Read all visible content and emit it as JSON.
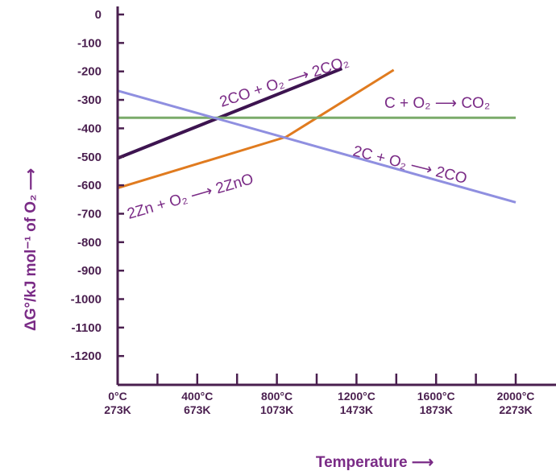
{
  "chart_data": {
    "type": "line",
    "ylabel": "ΔG°/kJ mol⁻¹ of O₂ ⟶",
    "xlabel": "Temperature ⟶",
    "ylim": [
      -1300,
      0
    ],
    "xlim": [
      273,
      2273
    ],
    "y_ticks": [
      "0",
      "-100",
      "-200",
      "-300",
      "-400",
      "-500",
      "-600",
      "-700",
      "-800",
      "-900",
      "-1000",
      "-1100",
      "-1200"
    ],
    "y_tick_values": [
      0,
      -100,
      -200,
      -300,
      -400,
      -500,
      -600,
      -700,
      -800,
      -900,
      -1000,
      -1100,
      -1200
    ],
    "x_ticks": [
      {
        "celsius": "0°C",
        "kelvin": "273K",
        "value": 273
      },
      {
        "celsius": "400°C",
        "kelvin": "673K",
        "value": 673
      },
      {
        "celsius": "800°C",
        "kelvin": "1073K",
        "value": 1073
      },
      {
        "celsius": "1200°C",
        "kelvin": "1473K",
        "value": 1473
      },
      {
        "celsius": "1600°C",
        "kelvin": "1873K",
        "value": 1873
      },
      {
        "celsius": "2000°C",
        "kelvin": "2273K",
        "value": 2273
      }
    ],
    "series": [
      {
        "name": "2CO + O₂ ⟶ 2CO₂",
        "color": "#3d1450",
        "points": [
          [
            273,
            -505
          ],
          [
            1400,
            -190
          ]
        ]
      },
      {
        "name": "2Zn + O₂ ⟶ 2ZnO",
        "color": "#e07b1f",
        "points": [
          [
            273,
            -610
          ],
          [
            1120,
            -430
          ],
          [
            1660,
            -195
          ]
        ]
      },
      {
        "name": "C + O₂ ⟶ CO₂",
        "color": "#7aab6a",
        "points": [
          [
            273,
            -363
          ],
          [
            2273,
            -363
          ]
        ]
      },
      {
        "name": "2C + O₂ ⟶ 2CO",
        "color": "#8f8fe0",
        "points": [
          [
            273,
            -268
          ],
          [
            2273,
            -660
          ]
        ]
      }
    ]
  }
}
